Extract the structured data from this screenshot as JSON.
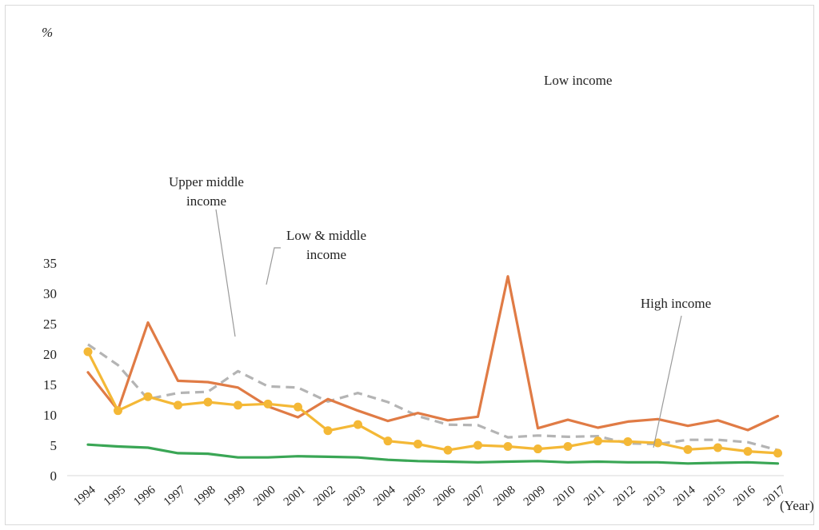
{
  "chart_data": {
    "type": "line",
    "y_unit": "%",
    "x_unit": "(Year)",
    "ylim": [
      0,
      35
    ],
    "yticks": [
      0,
      5,
      10,
      15,
      20,
      25,
      30,
      35
    ],
    "grid": false,
    "legend": "none",
    "x": [
      "1994",
      "1995",
      "1996",
      "1997",
      "1998",
      "1999",
      "2000",
      "2001",
      "2002",
      "2003",
      "2004",
      "2005",
      "2006",
      "2007",
      "2008",
      "2009",
      "2010",
      "2011",
      "2012",
      "2013",
      "2014",
      "2015",
      "2016",
      "2017"
    ],
    "series": [
      {
        "name": "Low income",
        "color": "#e07b45",
        "style": "solid",
        "markers": false,
        "values": [
          17.0,
          10.8,
          25.2,
          15.6,
          15.4,
          14.5,
          11.4,
          9.6,
          12.6,
          10.7,
          9.0,
          10.3,
          9.1,
          9.7,
          32.8,
          7.8,
          9.2,
          7.9,
          8.9,
          9.3,
          8.2,
          9.1,
          7.5,
          9.8
        ]
      },
      {
        "name": "Upper middle income",
        "color": "#f4b836",
        "style": "solid",
        "markers": true,
        "values": [
          20.4,
          10.7,
          13.0,
          11.6,
          12.1,
          11.6,
          11.8,
          11.3,
          7.4,
          8.4,
          5.7,
          5.2,
          4.2,
          5.0,
          4.8,
          4.4,
          4.8,
          5.7,
          5.6,
          5.4,
          4.3,
          4.6,
          4.0,
          3.7
        ]
      },
      {
        "name": "Low & middle income",
        "color": "#b4b4b4",
        "style": "dashed",
        "markers": false,
        "values": [
          21.6,
          18.2,
          12.6,
          13.6,
          13.8,
          17.2,
          14.7,
          14.5,
          12.2,
          13.6,
          12.1,
          9.8,
          8.4,
          8.3,
          6.3,
          6.6,
          6.4,
          6.5,
          5.3,
          5.2,
          5.9,
          5.9,
          5.5,
          4.2
        ]
      },
      {
        "name": "High income",
        "color": "#3aa655",
        "style": "solid",
        "markers": false,
        "values": [
          5.1,
          4.8,
          4.6,
          3.7,
          3.6,
          3.0,
          3.0,
          3.2,
          3.1,
          3.0,
          2.6,
          2.4,
          2.3,
          2.2,
          2.3,
          2.4,
          2.2,
          2.3,
          2.2,
          2.2,
          2.0,
          2.1,
          2.2,
          2.0
        ]
      }
    ],
    "annotations": [
      {
        "lines": [
          "Low income"
        ],
        "series": "Low income"
      },
      {
        "lines": [
          "Upper middle",
          "income"
        ],
        "series": "Upper middle income"
      },
      {
        "lines": [
          "Low & middle",
          "income"
        ],
        "series": "Low & middle income"
      },
      {
        "lines": [
          "High income"
        ],
        "series": "High income"
      }
    ]
  }
}
